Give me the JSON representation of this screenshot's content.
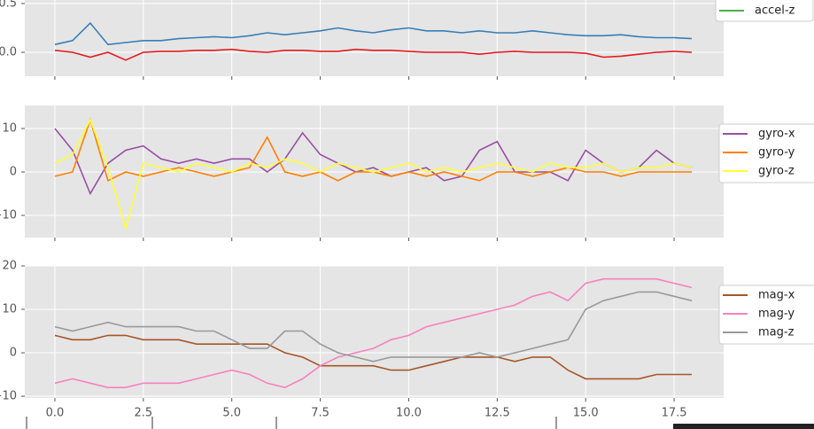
{
  "chart_data": [
    {
      "type": "line",
      "x": [
        0,
        0.5,
        1,
        1.5,
        2,
        2.5,
        3,
        3.5,
        4,
        4.5,
        5,
        5.5,
        6,
        6.5,
        7,
        7.5,
        8,
        8.5,
        9,
        9.5,
        10,
        10.5,
        11,
        11.5,
        12,
        12.5,
        13,
        13.5,
        14,
        14.5,
        15,
        15.5,
        16,
        16.5,
        17,
        17.5,
        18
      ],
      "series": [
        {
          "color": "#377eb8",
          "values": [
            0.08,
            0.12,
            0.3,
            0.08,
            0.1,
            0.12,
            0.12,
            0.14,
            0.15,
            0.16,
            0.15,
            0.17,
            0.2,
            0.18,
            0.2,
            0.22,
            0.25,
            0.22,
            0.2,
            0.23,
            0.25,
            0.22,
            0.22,
            0.2,
            0.22,
            0.2,
            0.2,
            0.22,
            0.2,
            0.18,
            0.17,
            0.17,
            0.18,
            0.16,
            0.15,
            0.15,
            0.14
          ]
        },
        {
          "color": "#e41a1c",
          "values": [
            0.02,
            0,
            -0.05,
            0,
            -0.08,
            0,
            0.01,
            0.01,
            0.02,
            0.02,
            0.03,
            0.01,
            0,
            0.02,
            0.02,
            0.01,
            0.01,
            0.03,
            0.02,
            0.02,
            0.01,
            0,
            0,
            0,
            -0.02,
            0,
            0.01,
            0,
            0,
            0,
            -0.01,
            -0.05,
            -0.04,
            -0.02,
            0,
            0.01,
            0
          ]
        },
        {
          "name": "accel-z",
          "color": "#4daf4a",
          "values": [
            null,
            null,
            null,
            null,
            null,
            null,
            null,
            null,
            null,
            null,
            null,
            null,
            null,
            null,
            null,
            null,
            null,
            null,
            null,
            null,
            null,
            null,
            null,
            null,
            null,
            null,
            null,
            null,
            null,
            null,
            null,
            null,
            null,
            null,
            null,
            null,
            null
          ]
        }
      ],
      "xlim": [
        -0.85,
        18.9
      ],
      "ylim": [
        -0.245,
        0.536
      ],
      "xticks": [
        {
          "value": 0,
          "label": "0.0"
        },
        2.5,
        {
          "value": 5,
          "label": "5.0"
        },
        7.5,
        {
          "value": 10,
          "label": "10.0"
        },
        12.5,
        {
          "value": 15,
          "label": "15.0"
        },
        17.5
      ],
      "yticks": [
        {
          "value": 0,
          "label": "0.0"
        },
        0.5
      ],
      "show_xtick_labels": false,
      "grid": true
    },
    {
      "type": "line",
      "x": [
        0,
        0.5,
        1,
        1.5,
        2,
        2.5,
        3,
        3.5,
        4,
        4.5,
        5,
        5.5,
        6,
        6.5,
        7,
        7.5,
        8,
        8.5,
        9,
        9.5,
        10,
        10.5,
        11,
        11.5,
        12,
        12.5,
        13,
        13.5,
        14,
        14.5,
        15,
        15.5,
        16,
        16.5,
        17,
        17.5,
        18
      ],
      "series": [
        {
          "name": "gyro-x",
          "color": "#984ea3",
          "values": [
            10,
            5,
            -5,
            2,
            5,
            6,
            3,
            2,
            3,
            2,
            3,
            3,
            0,
            3,
            9,
            4,
            2,
            0,
            1,
            -1,
            0,
            1,
            -2,
            -1,
            5,
            7,
            0,
            0,
            0,
            -2,
            5,
            2,
            0,
            1,
            5,
            2,
            1
          ]
        },
        {
          "name": "gyro-y",
          "color": "#ff7f00",
          "values": [
            -1,
            0,
            12,
            -2,
            0,
            -1,
            0,
            1,
            0,
            -1,
            0,
            1,
            8,
            0,
            -1,
            0,
            -2,
            0,
            0,
            -1,
            0,
            -1,
            0,
            -1,
            -2,
            0,
            0,
            -1,
            0,
            1,
            0,
            0,
            -1,
            0,
            0,
            0,
            0
          ]
        },
        {
          "name": "gyro-z",
          "color": "#ffff33",
          "values": [
            2,
            4,
            12,
            1,
            -13,
            2,
            1,
            0,
            2,
            1,
            0,
            2,
            1,
            3,
            2,
            0,
            2,
            1,
            0,
            1,
            2,
            0,
            1,
            0,
            1,
            2,
            1,
            0,
            2,
            1,
            1,
            2,
            0,
            1,
            1,
            2,
            1
          ]
        }
      ],
      "xlim": [
        -0.85,
        18.9
      ],
      "ylim": [
        -15.1,
        15.3
      ],
      "xticks": [
        {
          "value": 0,
          "label": "0.0"
        },
        2.5,
        {
          "value": 5,
          "label": "5.0"
        },
        7.5,
        {
          "value": 10,
          "label": "10.0"
        },
        12.5,
        {
          "value": 15,
          "label": "15.0"
        },
        17.5
      ],
      "yticks": [
        {
          "value": -10,
          "label": "−10"
        },
        0,
        10
      ],
      "show_xtick_labels": false,
      "grid": true
    },
    {
      "type": "line",
      "x": [
        0,
        0.5,
        1,
        1.5,
        2,
        2.5,
        3,
        3.5,
        4,
        4.5,
        5,
        5.5,
        6,
        6.5,
        7,
        7.5,
        8,
        8.5,
        9,
        9.5,
        10,
        10.5,
        11,
        11.5,
        12,
        12.5,
        13,
        13.5,
        14,
        14.5,
        15,
        15.5,
        16,
        16.5,
        17,
        17.5,
        18
      ],
      "series": [
        {
          "name": "mag-x",
          "color": "#a65628",
          "values": [
            4,
            3,
            3,
            4,
            4,
            3,
            3,
            3,
            2,
            2,
            2,
            2,
            2,
            0,
            -1,
            -3,
            -3,
            -3,
            -3,
            -4,
            -4,
            -3,
            -2,
            -1,
            -1,
            -1,
            -2,
            -1,
            -1,
            -4,
            -6,
            -6,
            -6,
            -6,
            -5,
            -5,
            -5
          ]
        },
        {
          "name": "mag-y",
          "color": "#f781bf",
          "values": [
            -7,
            -6,
            -7,
            -8,
            -8,
            -7,
            -7,
            -7,
            -6,
            -5,
            -4,
            -5,
            -7,
            -8,
            -6,
            -3,
            -1,
            0,
            1,
            3,
            4,
            6,
            7,
            8,
            9,
            10,
            11,
            13,
            14,
            12,
            16,
            17,
            17,
            17,
            17,
            16,
            15
          ]
        },
        {
          "name": "mag-z",
          "color": "#999999",
          "values": [
            6,
            5,
            6,
            7,
            6,
            6,
            6,
            6,
            5,
            5,
            3,
            1,
            1,
            5,
            5,
            2,
            0,
            -1,
            -2,
            -1,
            -1,
            -1,
            -1,
            -1,
            0,
            -1,
            0,
            1,
            2,
            3,
            10,
            12,
            13,
            14,
            14,
            13,
            12
          ]
        }
      ],
      "xlim": [
        -0.85,
        18.9
      ],
      "ylim": [
        -10.4,
        20
      ],
      "xticks": [
        {
          "value": 0,
          "label": "0.0"
        },
        2.5,
        {
          "value": 5,
          "label": "5.0"
        },
        7.5,
        {
          "value": 10,
          "label": "10.0"
        },
        12.5,
        {
          "value": 15,
          "label": "15.0"
        },
        17.5
      ],
      "yticks": [
        {
          "value": -10,
          "label": "−10"
        },
        0,
        10,
        20
      ],
      "show_xtick_labels": true,
      "grid": true
    }
  ]
}
